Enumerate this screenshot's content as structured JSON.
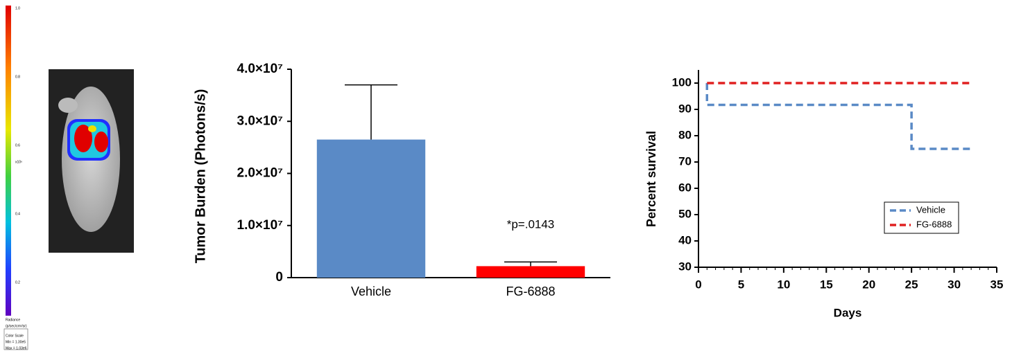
{
  "image_panel": {
    "colorbar_labels": [
      "1.0",
      "0.8",
      "0.6",
      "0.4",
      "0.2"
    ],
    "colorbar_unit": "x10⁶",
    "caption": [
      "Radiance",
      "(p/sec/cm²/sr)",
      "Color Scale",
      "Min = 1.30e5",
      "Max = 1.03e6"
    ]
  },
  "chart_data": [
    {
      "type": "bar",
      "y_label": "Tumor Burden (Photons/s)",
      "categories": [
        "Vehicle",
        "FG-6888"
      ],
      "values": [
        26500000,
        2200000
      ],
      "errors": [
        10500000,
        800000
      ],
      "colors": [
        "#5a8ac6",
        "#ff0000"
      ],
      "ylim": [
        0,
        40000000
      ],
      "yticks": [
        0,
        {
          "value": 10000000,
          "label": "1.0×10⁷"
        },
        {
          "value": 20000000,
          "label": "2.0×10⁷"
        },
        {
          "value": 30000000,
          "label": "3.0×10⁷"
        },
        {
          "value": 40000000,
          "label": "4.0×10⁷"
        }
      ],
      "annotation": "*p=.0143"
    },
    {
      "type": "line",
      "x_label": "Days",
      "y_label": "Percent survival",
      "xlim": [
        0,
        35
      ],
      "xticks": [
        0,
        5,
        10,
        15,
        20,
        25,
        30,
        35
      ],
      "ylim": [
        30,
        105
      ],
      "yticks": [
        30,
        40,
        50,
        60,
        70,
        80,
        90,
        100
      ],
      "legend": "lower right",
      "series": [
        {
          "name": "Vehicle",
          "color": "#5a8ac6",
          "x": [
            1,
            1,
            25,
            25,
            32
          ],
          "values": [
            100,
            91.7,
            91.7,
            75,
            75
          ]
        },
        {
          "name": "FG-6888",
          "color": "#e02020",
          "x": [
            1,
            32
          ],
          "values": [
            100,
            100
          ]
        }
      ]
    }
  ]
}
